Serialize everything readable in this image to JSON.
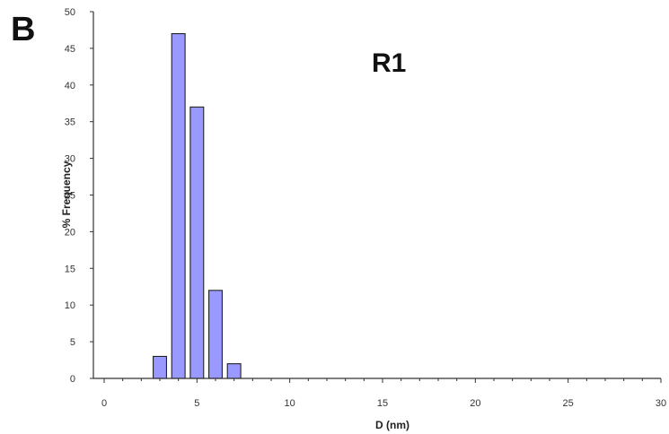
{
  "panel_letter": "B",
  "chart_data": {
    "type": "bar",
    "label": "R1",
    "xlabel": "D (nm)",
    "ylabel": "% Frequency",
    "xlim": [
      0,
      30
    ],
    "ylim": [
      0,
      50
    ],
    "xticks": [
      0,
      5,
      10,
      15,
      20,
      25,
      30
    ],
    "yticks": [
      0,
      5,
      10,
      15,
      20,
      25,
      30,
      35,
      40,
      45,
      50
    ],
    "x": [
      3,
      4,
      5,
      6,
      7
    ],
    "values": [
      3,
      47,
      37,
      12,
      2
    ],
    "bar_color": "#9999ff",
    "grid": false,
    "legend": false
  }
}
